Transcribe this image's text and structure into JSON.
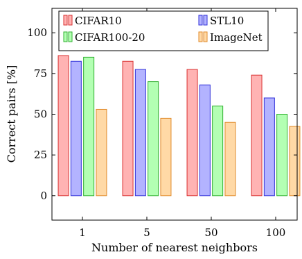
{
  "chart_data": {
    "type": "bar",
    "categories": [
      "1",
      "5",
      "50",
      "100"
    ],
    "series": [
      {
        "name": "CIFAR10",
        "values": [
          86,
          82.5,
          77.5,
          74
        ],
        "fill": "#ffb3b3",
        "stroke": "#d93030"
      },
      {
        "name": "STL10",
        "values": [
          82.5,
          77.5,
          68,
          60
        ],
        "fill": "#b3b3ff",
        "stroke": "#3030d9"
      },
      {
        "name": "CIFAR100-20",
        "values": [
          85,
          70,
          55,
          50
        ],
        "fill": "#b3ffb3",
        "stroke": "#30b030"
      },
      {
        "name": "ImageNet",
        "values": [
          53,
          47.5,
          45,
          42.5
        ],
        "fill": "#ffd9a6",
        "stroke": "#e08a2a"
      }
    ],
    "xlabel": "Number of nearest neighbors",
    "ylabel": "Correct pairs [%]",
    "ylim": [
      -15,
      115
    ],
    "yticks": [
      0,
      25,
      50,
      75,
      100
    ],
    "grid": false,
    "legend_position": "top"
  }
}
